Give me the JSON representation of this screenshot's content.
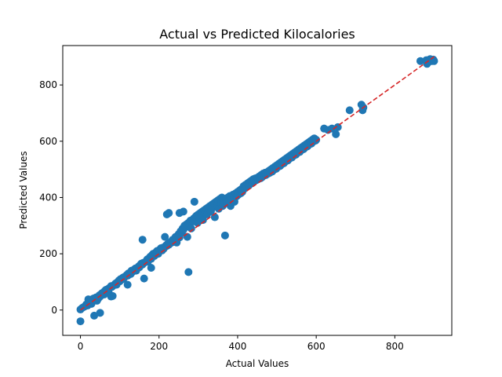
{
  "colors": {
    "point": "#1f77b4",
    "reference_line": "#d62728",
    "axes": "#000000",
    "background": "#ffffff"
  },
  "chart_data": {
    "type": "scatter",
    "title": "Actual vs Predicted Kilocalories",
    "xlabel": "Actual Values",
    "ylabel": "Predicted Values",
    "xlim": [
      -45,
      945
    ],
    "ylim": [
      -90,
      940
    ],
    "xticks": [
      0,
      200,
      400,
      600,
      800
    ],
    "yticks": [
      0,
      200,
      400,
      600,
      800
    ],
    "grid": false,
    "legend": "none",
    "reference_line": {
      "style": "dashed",
      "from": [
        0,
        0
      ],
      "to": [
        900,
        900
      ]
    },
    "points": [
      [
        0,
        -40
      ],
      [
        0,
        2
      ],
      [
        5,
        8
      ],
      [
        10,
        12
      ],
      [
        15,
        20
      ],
      [
        18,
        16
      ],
      [
        20,
        38
      ],
      [
        22,
        25
      ],
      [
        25,
        30
      ],
      [
        28,
        22
      ],
      [
        30,
        28
      ],
      [
        32,
        40
      ],
      [
        35,
        -20
      ],
      [
        35,
        42
      ],
      [
        38,
        35
      ],
      [
        40,
        45
      ],
      [
        42,
        33
      ],
      [
        45,
        40
      ],
      [
        48,
        52
      ],
      [
        50,
        -10
      ],
      [
        50,
        48
      ],
      [
        52,
        56
      ],
      [
        55,
        60
      ],
      [
        58,
        62
      ],
      [
        60,
        55
      ],
      [
        62,
        68
      ],
      [
        65,
        72
      ],
      [
        68,
        70
      ],
      [
        70,
        75
      ],
      [
        72,
        62
      ],
      [
        75,
        80
      ],
      [
        78,
        48
      ],
      [
        78,
        85
      ],
      [
        80,
        82
      ],
      [
        82,
        50
      ],
      [
        85,
        88
      ],
      [
        88,
        92
      ],
      [
        90,
        95
      ],
      [
        92,
        90
      ],
      [
        95,
        100
      ],
      [
        98,
        105
      ],
      [
        100,
        102
      ],
      [
        102,
        110
      ],
      [
        105,
        108
      ],
      [
        108,
        115
      ],
      [
        110,
        112
      ],
      [
        112,
        118
      ],
      [
        115,
        120
      ],
      [
        118,
        125
      ],
      [
        120,
        90
      ],
      [
        120,
        122
      ],
      [
        122,
        130
      ],
      [
        125,
        132
      ],
      [
        128,
        128
      ],
      [
        130,
        140
      ],
      [
        132,
        135
      ],
      [
        135,
        142
      ],
      [
        138,
        145
      ],
      [
        140,
        148
      ],
      [
        142,
        140
      ],
      [
        145,
        150
      ],
      [
        148,
        155
      ],
      [
        150,
        152
      ],
      [
        152,
        160
      ],
      [
        155,
        165
      ],
      [
        158,
        250
      ],
      [
        158,
        162
      ],
      [
        160,
        168
      ],
      [
        162,
        112
      ],
      [
        165,
        170
      ],
      [
        168,
        175
      ],
      [
        170,
        180
      ],
      [
        172,
        172
      ],
      [
        175,
        185
      ],
      [
        178,
        190
      ],
      [
        180,
        150
      ],
      [
        180,
        182
      ],
      [
        182,
        195
      ],
      [
        185,
        200
      ],
      [
        188,
        192
      ],
      [
        190,
        195
      ],
      [
        192,
        205
      ],
      [
        195,
        210
      ],
      [
        198,
        200
      ],
      [
        200,
        208
      ],
      [
        202,
        215
      ],
      [
        205,
        220
      ],
      [
        208,
        212
      ],
      [
        210,
        222
      ],
      [
        212,
        218
      ],
      [
        215,
        225
      ],
      [
        215,
        260
      ],
      [
        218,
        230
      ],
      [
        220,
        340
      ],
      [
        220,
        228
      ],
      [
        222,
        235
      ],
      [
        225,
        345
      ],
      [
        225,
        232
      ],
      [
        228,
        240
      ],
      [
        230,
        238
      ],
      [
        232,
        245
      ],
      [
        235,
        250
      ],
      [
        238,
        242
      ],
      [
        240,
        255
      ],
      [
        242,
        260
      ],
      [
        245,
        240
      ],
      [
        248,
        265
      ],
      [
        250,
        270
      ],
      [
        252,
        345
      ],
      [
        252,
        258
      ],
      [
        255,
        280
      ],
      [
        258,
        275
      ],
      [
        260,
        290
      ],
      [
        262,
        350
      ],
      [
        262,
        285
      ],
      [
        265,
        300
      ],
      [
        268,
        295
      ],
      [
        270,
        305
      ],
      [
        272,
        260
      ],
      [
        275,
        135
      ],
      [
        275,
        310
      ],
      [
        278,
        300
      ],
      [
        280,
        318
      ],
      [
        282,
        290
      ],
      [
        285,
        320
      ],
      [
        288,
        325
      ],
      [
        290,
        385
      ],
      [
        290,
        315
      ],
      [
        292,
        330
      ],
      [
        295,
        335
      ],
      [
        298,
        310
      ],
      [
        300,
        340
      ],
      [
        302,
        330
      ],
      [
        305,
        345
      ],
      [
        308,
        338
      ],
      [
        310,
        350
      ],
      [
        312,
        320
      ],
      [
        315,
        355
      ],
      [
        318,
        348
      ],
      [
        320,
        360
      ],
      [
        322,
        340
      ],
      [
        325,
        365
      ],
      [
        328,
        358
      ],
      [
        330,
        370
      ],
      [
        332,
        350
      ],
      [
        335,
        375
      ],
      [
        338,
        365
      ],
      [
        340,
        380
      ],
      [
        342,
        330
      ],
      [
        345,
        385
      ],
      [
        348,
        372
      ],
      [
        350,
        390
      ],
      [
        352,
        360
      ],
      [
        355,
        395
      ],
      [
        358,
        380
      ],
      [
        360,
        400
      ],
      [
        362,
        370
      ],
      [
        365,
        390
      ],
      [
        368,
        265
      ],
      [
        370,
        395
      ],
      [
        372,
        380
      ],
      [
        375,
        400
      ],
      [
        378,
        390
      ],
      [
        380,
        405
      ],
      [
        382,
        370
      ],
      [
        385,
        395
      ],
      [
        388,
        410
      ],
      [
        390,
        400
      ],
      [
        392,
        385
      ],
      [
        395,
        415
      ],
      [
        398,
        405
      ],
      [
        400,
        420
      ],
      [
        402,
        410
      ],
      [
        405,
        425
      ],
      [
        408,
        415
      ],
      [
        410,
        430
      ],
      [
        412,
        420
      ],
      [
        415,
        440
      ],
      [
        418,
        432
      ],
      [
        420,
        445
      ],
      [
        422,
        438
      ],
      [
        425,
        450
      ],
      [
        428,
        442
      ],
      [
        430,
        455
      ],
      [
        432,
        448
      ],
      [
        435,
        460
      ],
      [
        438,
        452
      ],
      [
        440,
        465
      ],
      [
        442,
        458
      ],
      [
        445,
        468
      ],
      [
        448,
        462
      ],
      [
        450,
        470
      ],
      [
        452,
        465
      ],
      [
        455,
        475
      ],
      [
        458,
        468
      ],
      [
        460,
        480
      ],
      [
        462,
        472
      ],
      [
        465,
        485
      ],
      [
        468,
        478
      ],
      [
        470,
        488
      ],
      [
        472,
        480
      ],
      [
        475,
        490
      ],
      [
        478,
        485
      ],
      [
        480,
        495
      ],
      [
        482,
        488
      ],
      [
        485,
        500
      ],
      [
        488,
        492
      ],
      [
        490,
        505
      ],
      [
        492,
        498
      ],
      [
        495,
        510
      ],
      [
        498,
        502
      ],
      [
        500,
        515
      ],
      [
        502,
        508
      ],
      [
        505,
        520
      ],
      [
        508,
        512
      ],
      [
        510,
        525
      ],
      [
        512,
        518
      ],
      [
        515,
        530
      ],
      [
        518,
        522
      ],
      [
        520,
        535
      ],
      [
        522,
        528
      ],
      [
        525,
        540
      ],
      [
        528,
        532
      ],
      [
        530,
        545
      ],
      [
        532,
        538
      ],
      [
        535,
        550
      ],
      [
        538,
        542
      ],
      [
        540,
        555
      ],
      [
        542,
        548
      ],
      [
        545,
        560
      ],
      [
        548,
        552
      ],
      [
        550,
        565
      ],
      [
        552,
        558
      ],
      [
        555,
        570
      ],
      [
        558,
        562
      ],
      [
        560,
        575
      ],
      [
        562,
        568
      ],
      [
        565,
        580
      ],
      [
        568,
        572
      ],
      [
        570,
        585
      ],
      [
        572,
        578
      ],
      [
        575,
        590
      ],
      [
        578,
        582
      ],
      [
        580,
        595
      ],
      [
        582,
        588
      ],
      [
        585,
        600
      ],
      [
        588,
        592
      ],
      [
        590,
        605
      ],
      [
        592,
        598
      ],
      [
        595,
        610
      ],
      [
        598,
        602
      ],
      [
        600,
        605
      ],
      [
        620,
        645
      ],
      [
        630,
        640
      ],
      [
        640,
        645
      ],
      [
        650,
        625
      ],
      [
        655,
        650
      ],
      [
        685,
        710
      ],
      [
        715,
        730
      ],
      [
        718,
        710
      ],
      [
        720,
        720
      ],
      [
        865,
        885
      ],
      [
        880,
        888
      ],
      [
        882,
        875
      ],
      [
        885,
        880
      ],
      [
        890,
        892
      ],
      [
        895,
        885
      ],
      [
        898,
        890
      ],
      [
        900,
        885
      ]
    ]
  }
}
